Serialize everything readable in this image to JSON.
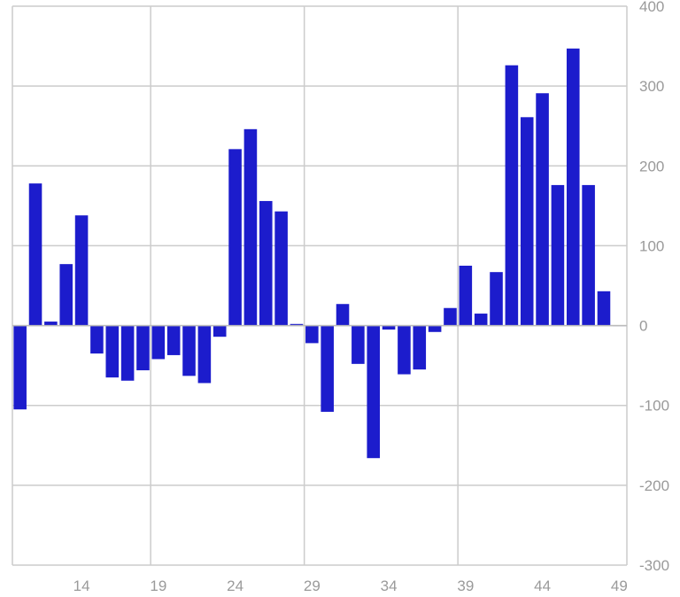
{
  "chart_data": {
    "type": "bar",
    "title": "",
    "xlabel": "",
    "ylabel": "",
    "x": [
      10,
      11,
      12,
      13,
      14,
      15,
      16,
      17,
      18,
      19,
      20,
      21,
      22,
      23,
      24,
      25,
      26,
      27,
      28,
      29,
      30,
      31,
      32,
      33,
      34,
      35,
      36,
      37,
      38,
      39,
      40,
      41,
      42,
      43,
      44,
      45,
      46,
      47,
      48,
      49
    ],
    "values": [
      -105,
      178,
      5,
      77,
      138,
      -35,
      -65,
      -69,
      -56,
      -42,
      -37,
      -63,
      -72,
      -14,
      221,
      246,
      156,
      143,
      2,
      -22,
      -108,
      27,
      -48,
      -166,
      -5,
      -61,
      -55,
      -8,
      22,
      75,
      15,
      67,
      326,
      261,
      291,
      176,
      347,
      176,
      43,
      0
    ],
    "ylim": [
      -300,
      400
    ],
    "xlim": [
      9.5,
      49.5
    ],
    "yticks": [
      -300,
      -200,
      -100,
      0,
      100,
      200,
      300,
      400
    ],
    "ytick_labels": [
      "-300",
      "-200",
      "-100",
      "0",
      "100",
      "200",
      "300",
      "400"
    ],
    "xticks": [
      14,
      19,
      24,
      29,
      34,
      39,
      44,
      49
    ],
    "xtick_labels": [
      "14",
      "19",
      "24",
      "29",
      "34",
      "39",
      "44",
      "49"
    ],
    "x_gridlines": [
      9.5,
      18.5,
      28.5,
      38.5
    ],
    "grid": true,
    "y_axis_position": "right",
    "bar_color": "#1c1ccc",
    "grid_color": "#cccccc"
  }
}
